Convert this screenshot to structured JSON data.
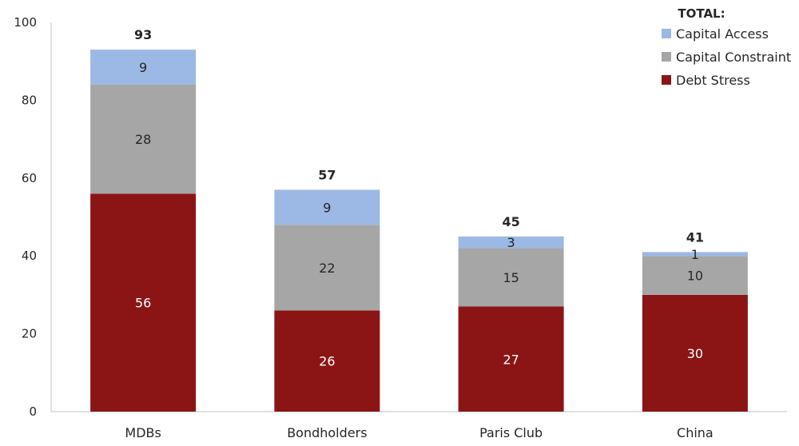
{
  "chart_data": {
    "type": "bar",
    "stacked": true,
    "categories": [
      "MDBs",
      "Bondholders",
      "Paris Club",
      "China"
    ],
    "series": [
      {
        "name": "Debt Stress",
        "values": [
          56,
          26,
          27,
          30
        ],
        "color": "#8b1515",
        "label_color": "#ffffff"
      },
      {
        "name": "Capital Constraint",
        "values": [
          28,
          22,
          15,
          10
        ],
        "color": "#a6a6a6",
        "label_color": "#262626"
      },
      {
        "name": "Capital Access",
        "values": [
          9,
          9,
          3,
          1
        ],
        "color": "#9cb8e4",
        "label_color": "#262626"
      }
    ],
    "totals": [
      93,
      57,
      45,
      41
    ],
    "ylim": [
      0,
      100
    ],
    "yticks": [
      0,
      20,
      40,
      60,
      80,
      100
    ],
    "grid": false,
    "legend": {
      "title": "TOTAL:",
      "placement": "top-right",
      "order": [
        "Capital Access",
        "Capital Constraint",
        "Debt Stress"
      ]
    }
  }
}
